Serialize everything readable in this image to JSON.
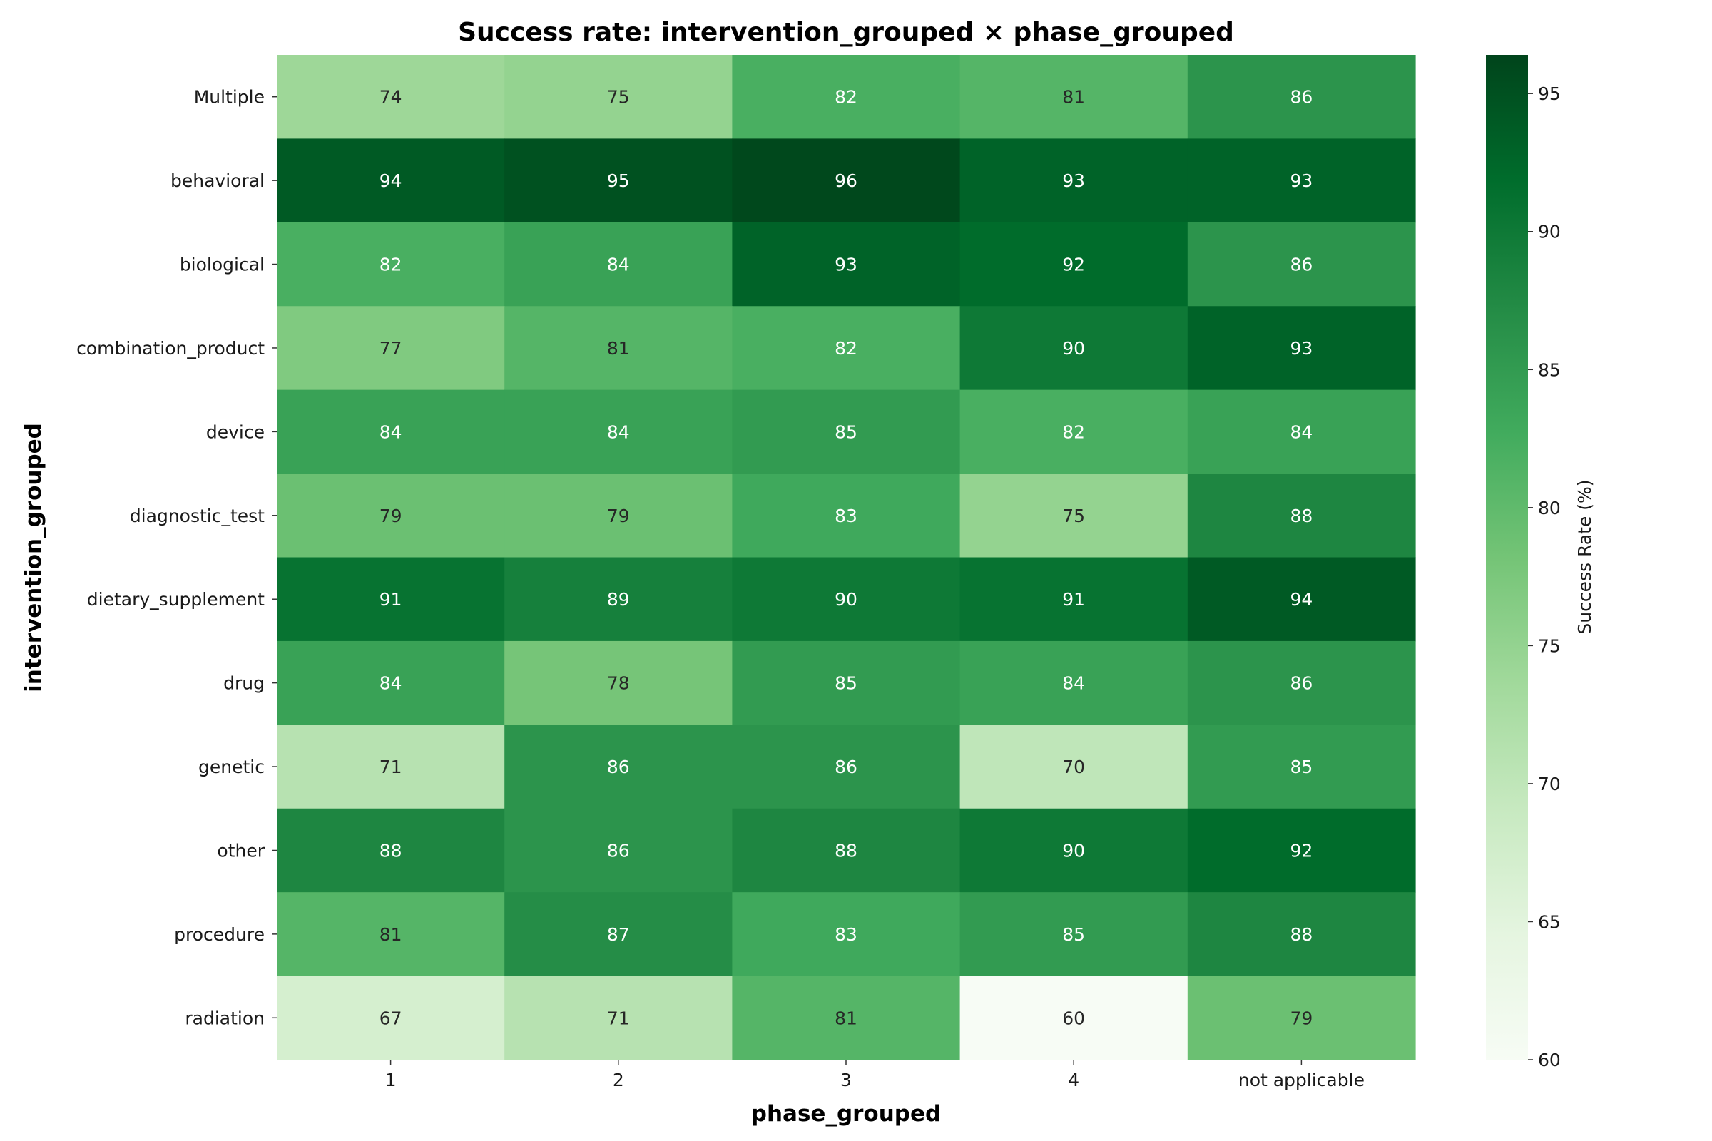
{
  "chart_data": {
    "type": "heatmap",
    "title": "Success rate: intervention_grouped × phase_grouped",
    "xlabel": "phase_grouped",
    "ylabel": "intervention_grouped",
    "x_categories": [
      "1",
      "2",
      "3",
      "4",
      "not applicable"
    ],
    "y_categories": [
      "Multiple",
      "behavioral",
      "biological",
      "combination_product",
      "device",
      "diagnostic_test",
      "dietary_supplement",
      "drug",
      "genetic",
      "other",
      "procedure",
      "radiation"
    ],
    "values": [
      [
        74,
        75,
        82,
        81,
        86
      ],
      [
        94,
        95,
        96,
        93,
        93
      ],
      [
        82,
        84,
        93,
        92,
        86
      ],
      [
        77,
        81,
        82,
        90,
        93
      ],
      [
        84,
        84,
        85,
        82,
        84
      ],
      [
        79,
        79,
        83,
        75,
        88
      ],
      [
        91,
        89,
        90,
        91,
        94
      ],
      [
        84,
        78,
        85,
        84,
        86
      ],
      [
        71,
        86,
        86,
        70,
        85
      ],
      [
        88,
        86,
        88,
        90,
        92
      ],
      [
        81,
        87,
        83,
        85,
        88
      ],
      [
        67,
        71,
        81,
        60,
        79
      ]
    ],
    "colorbar": {
      "label": "Success Rate (%)",
      "range": [
        60,
        96.4
      ],
      "ticks": [
        60,
        65,
        70,
        75,
        80,
        85,
        90,
        95
      ],
      "colormap": "Greens"
    },
    "annotations": true,
    "grid": false,
    "legend": "colorbar-right"
  }
}
